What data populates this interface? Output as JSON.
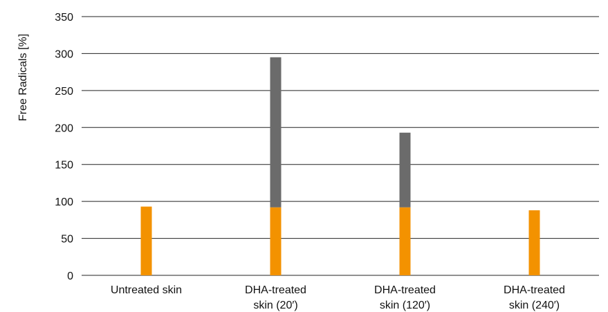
{
  "chart_data": {
    "type": "bar",
    "stacked": true,
    "ylabel": "Free Radicals [%]",
    "ylim": [
      0,
      350
    ],
    "yticks": [
      0,
      50,
      100,
      150,
      200,
      250,
      300,
      350
    ],
    "grid": true,
    "categories": [
      [
        "Untreated skin"
      ],
      [
        "DHA-treated",
        "skin (20′)"
      ],
      [
        "DHA-treated",
        "skin (120′)"
      ],
      [
        "DHA-treated",
        "skin (240′)"
      ]
    ],
    "series": [
      {
        "values": [
          93,
          92,
          92,
          88
        ],
        "color": "#f39200"
      },
      {
        "values": [
          0,
          203,
          101,
          0
        ],
        "color": "#6b6b6b"
      }
    ]
  }
}
